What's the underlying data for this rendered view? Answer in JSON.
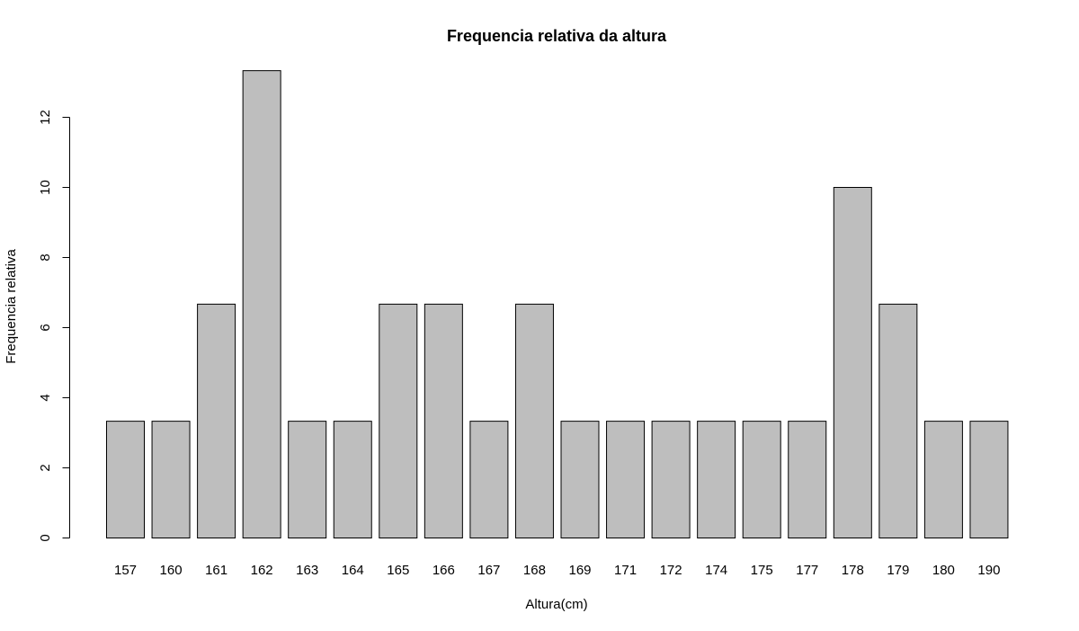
{
  "chart_data": {
    "type": "bar",
    "title": "Frequencia relativa da altura",
    "xlabel": "Altura(cm)",
    "ylabel": "Frequencia relativa",
    "categories": [
      "157",
      "160",
      "161",
      "162",
      "163",
      "164",
      "165",
      "166",
      "167",
      "168",
      "169",
      "171",
      "172",
      "174",
      "175",
      "177",
      "178",
      "179",
      "180",
      "190"
    ],
    "values": [
      3.33,
      3.33,
      6.67,
      13.33,
      3.33,
      3.33,
      6.67,
      6.67,
      3.33,
      6.67,
      3.33,
      3.33,
      3.33,
      3.33,
      3.33,
      3.33,
      10.0,
      6.67,
      3.33,
      3.33
    ],
    "y_ticks": [
      0,
      2,
      4,
      6,
      8,
      10,
      12
    ],
    "y_tick_labels": [
      "0",
      "2",
      "4",
      "6",
      "8",
      "10",
      "12"
    ],
    "ylim": [
      0,
      13.33
    ],
    "grid": false,
    "legend": "none",
    "bar_fill": "#bebebe",
    "bar_stroke": "#000000"
  }
}
